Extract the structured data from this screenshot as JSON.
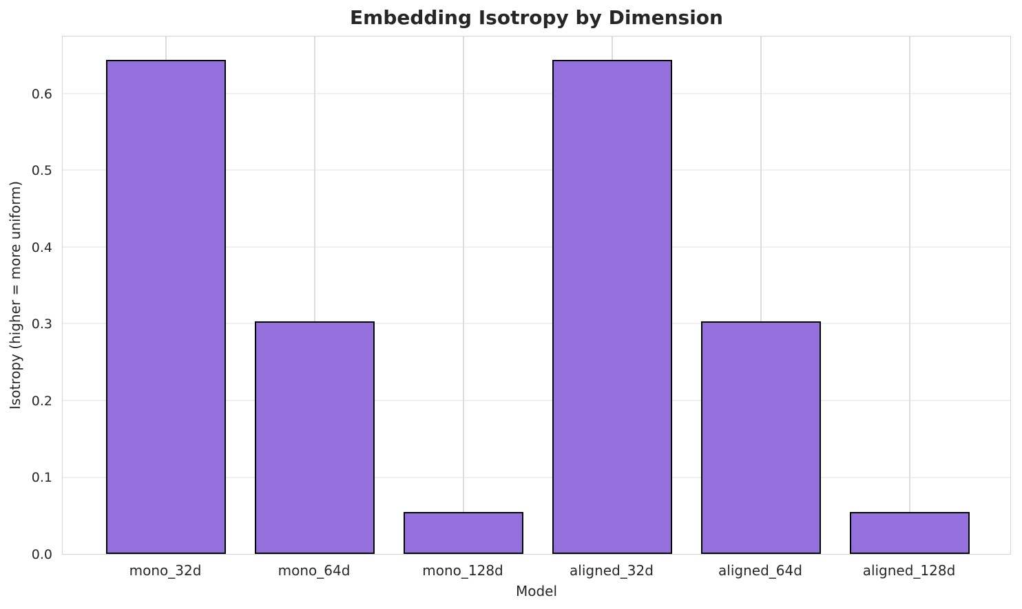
{
  "chart_data": {
    "type": "bar",
    "title": "Embedding Isotropy by Dimension",
    "xlabel": "Model",
    "ylabel": "Isotropy (higher = more uniform)",
    "categories": [
      "mono_32d",
      "mono_64d",
      "mono_128d",
      "aligned_32d",
      "aligned_64d",
      "aligned_128d"
    ],
    "values": [
      0.644,
      0.303,
      0.055,
      0.644,
      0.303,
      0.055
    ],
    "ylim": [
      0,
      0.6762
    ],
    "yticks": [
      0.0,
      0.1,
      0.2,
      0.3,
      0.4,
      0.5,
      0.6
    ],
    "ytick_labels": [
      "0.0",
      "0.1",
      "0.2",
      "0.3",
      "0.4",
      "0.5",
      "0.6"
    ],
    "grid": true,
    "legend_position": "none",
    "colors": {
      "bar_fill": "#9370DB",
      "bar_edge": "#000000",
      "grid_horizontal": "#f0f0f0",
      "grid_vertical": "#dcdcdc",
      "spine": "#d4d4d4",
      "text": "#262626",
      "background": "#ffffff"
    }
  }
}
